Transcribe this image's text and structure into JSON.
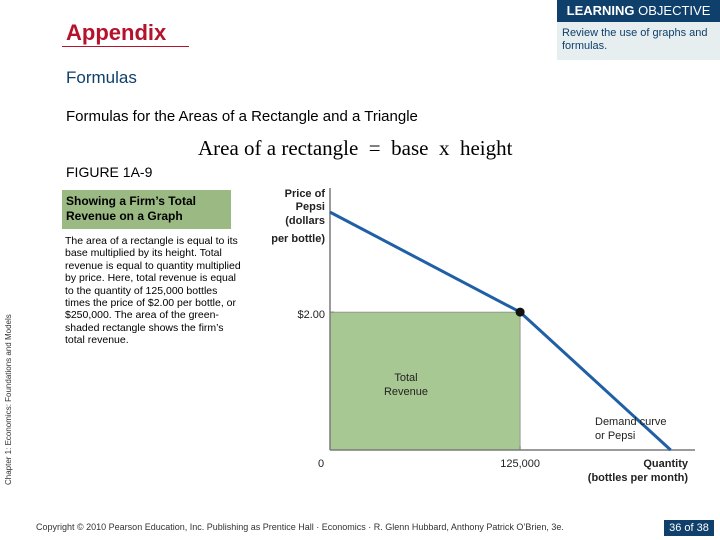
{
  "header": {
    "title": "Appendix",
    "learning_objective_label_bold": "LEARNING",
    "learning_objective_label_rest": " OBJECTIVE",
    "learning_objective_text": "Review the use of graphs and formulas."
  },
  "section_title": "Formulas",
  "subheading": "Formulas for the Areas of a Rectangle and a Triangle",
  "formula": "Area of a rectangle  =  base  x  height",
  "figure": {
    "label": "FIGURE 1A-9",
    "caption": "Showing a Firm’s Total Revenue on a Graph",
    "body": "The area of a rectangle is equal to its base multiplied by its height. Total revenue is equal to quantity multiplied by price. Here, total revenue is equal to the quantity of 125,000 bottles times the price of $2.00 per bottle, or $250,000. The area of the green-shaded rectangle shows the firm’s total revenue."
  },
  "side_label": "Chapter 1: Economics:  Foundations and Models",
  "chart_data": {
    "type": "line",
    "ylabel": "Price of Pepsi (dollars per bottle)",
    "xlabel": "Quantity (bottles per month)",
    "origin_label": "0",
    "x_tick": {
      "value": 125000,
      "label": "125,000"
    },
    "y_tick": {
      "value": 2.0,
      "label": "$2.00"
    },
    "series": [
      {
        "name": "Demand curve for Pepsi",
        "points": [
          [
            0,
            3.45
          ],
          [
            125000,
            2.0
          ],
          [
            224000,
            0.0
          ]
        ]
      }
    ],
    "point": {
      "x": 125000,
      "y": 2.0
    },
    "shaded_area_label": "Total Revenue",
    "xlim": [
      0,
      240000
    ],
    "ylim": [
      0,
      3.8
    ],
    "colors": {
      "line": "#1f5fa6",
      "area": "#a8c893",
      "axis": "#7a7a7a"
    }
  },
  "footer": {
    "copyright": "Copyright © 2010 Pearson Education, Inc. Publishing as Prentice Hall · Economics · R. Glenn Hubbard, Anthony Patrick O’Brien, 3e.",
    "page": "36 of 38"
  }
}
